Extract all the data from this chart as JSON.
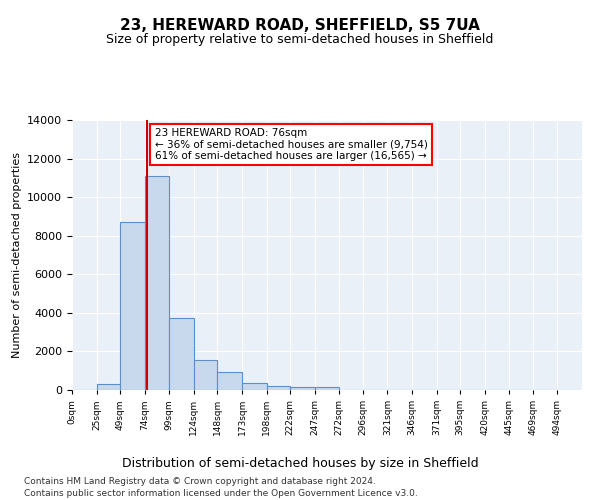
{
  "title": "23, HEREWARD ROAD, SHEFFIELD, S5 7UA",
  "subtitle": "Size of property relative to semi-detached houses in Sheffield",
  "xlabel": "Distribution of semi-detached houses by size in Sheffield",
  "ylabel": "Number of semi-detached properties",
  "bar_color": "#c9d9ed",
  "bar_edge_color": "#5b8fc9",
  "background_color": "#eaf0f8",
  "grid_color": "#ffffff",
  "property_line_color": "#cc0000",
  "property_sqm": 76,
  "property_label": "23 HEREWARD ROAD: 76sqm",
  "smaller_pct": 36,
  "smaller_count": 9754,
  "larger_pct": 61,
  "larger_count": 16565,
  "bin_labels": [
    "0sqm",
    "25sqm",
    "49sqm",
    "74sqm",
    "99sqm",
    "124sqm",
    "148sqm",
    "173sqm",
    "198sqm",
    "222sqm",
    "247sqm",
    "272sqm",
    "296sqm",
    "321sqm",
    "346sqm",
    "371sqm",
    "395sqm",
    "420sqm",
    "445sqm",
    "469sqm",
    "494sqm"
  ],
  "bin_edges": [
    0,
    25,
    49,
    74,
    99,
    124,
    148,
    173,
    198,
    222,
    247,
    272,
    296,
    321,
    346,
    371,
    395,
    420,
    445,
    469,
    494
  ],
  "bar_values": [
    0,
    300,
    8700,
    11100,
    3750,
    1550,
    950,
    350,
    200,
    150,
    150,
    0,
    0,
    0,
    0,
    0,
    0,
    0,
    0,
    0
  ],
  "ylim": [
    0,
    14000
  ],
  "footnote_line1": "Contains HM Land Registry data © Crown copyright and database right 2024.",
  "footnote_line2": "Contains public sector information licensed under the Open Government Licence v3.0."
}
